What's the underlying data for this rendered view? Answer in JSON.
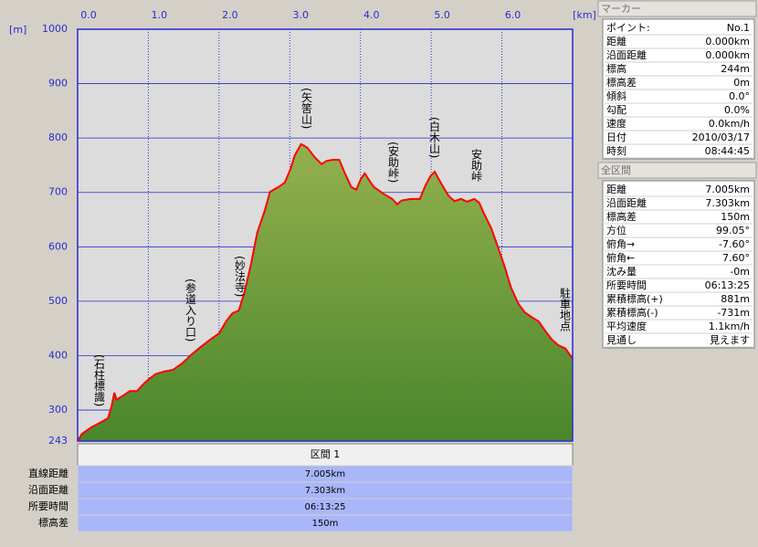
{
  "chart_data": {
    "type": "area",
    "xlabel": "[km]",
    "ylabel": "[m]",
    "xlim": [
      0,
      7.0
    ],
    "ylim": [
      243,
      1000
    ],
    "xticks": [
      {
        "value": 0,
        "label": "0.0"
      },
      {
        "value": 1,
        "label": "1.0"
      },
      {
        "value": 2,
        "label": "2.0"
      },
      {
        "value": 3,
        "label": "3.0"
      },
      {
        "value": 4,
        "label": "4.0"
      },
      {
        "value": 5,
        "label": "5.0"
      },
      {
        "value": 6,
        "label": "6.0"
      }
    ],
    "yticks": [
      243,
      300,
      400,
      500,
      600,
      700,
      800,
      900,
      1000
    ],
    "grid": true,
    "color": "#ff0000",
    "fill_top": "#93b14d",
    "fill_bottom": "#4a862c",
    "x": [
      0.0,
      0.06,
      0.19,
      0.32,
      0.43,
      0.48,
      0.52,
      0.55,
      0.65,
      0.74,
      0.84,
      0.94,
      1.01,
      1.1,
      1.23,
      1.35,
      1.48,
      1.61,
      1.74,
      1.87,
      2.0,
      2.1,
      2.19,
      2.28,
      2.36,
      2.45,
      2.54,
      2.65,
      2.72,
      2.84,
      2.93,
      3.01,
      3.07,
      3.16,
      3.25,
      3.35,
      3.45,
      3.52,
      3.61,
      3.7,
      3.78,
      3.87,
      3.94,
      4.01,
      4.06,
      4.13,
      4.19,
      4.32,
      4.45,
      4.52,
      4.58,
      4.71,
      4.84,
      4.92,
      4.99,
      5.05,
      5.1,
      5.17,
      5.25,
      5.33,
      5.42,
      5.51,
      5.61,
      5.68,
      5.74,
      5.85,
      5.94,
      6.03,
      6.13,
      6.23,
      6.32,
      6.43,
      6.52,
      6.61,
      6.71,
      6.8,
      6.9,
      7.0
    ],
    "values": [
      243,
      256,
      268,
      277,
      285,
      307,
      332,
      319,
      327,
      335,
      335,
      349,
      357,
      366,
      371,
      374,
      386,
      402,
      416,
      429,
      441,
      463,
      478,
      483,
      517,
      567,
      626,
      668,
      701,
      710,
      718,
      743,
      768,
      789,
      782,
      765,
      752,
      758,
      760,
      760,
      735,
      710,
      705,
      726,
      735,
      721,
      710,
      698,
      688,
      678,
      685,
      688,
      688,
      713,
      730,
      738,
      726,
      710,
      693,
      684,
      688,
      683,
      688,
      681,
      663,
      634,
      601,
      567,
      525,
      496,
      480,
      470,
      463,
      446,
      429,
      419,
      413,
      394
    ],
    "annotations": [
      "(石柱標識)",
      "(参道入り口)",
      "(妙法寺)",
      "(矢筈山)",
      "(安助峠)",
      "(白木山)",
      "安助峠",
      "駐車地点"
    ]
  },
  "section_table": {
    "header": "区間 1",
    "rows": [
      [
        "直線距離",
        "7.005km"
      ],
      [
        "沿面距離",
        "7.303km"
      ],
      [
        "所要時間",
        "06:13:25"
      ],
      [
        "標高差",
        "150m"
      ]
    ]
  },
  "marker_panel": {
    "title": "マーカー",
    "rows": [
      [
        "ポイント:",
        "No.1"
      ],
      [
        "距離",
        "0.000km"
      ],
      [
        "沿面距離",
        "0.000km"
      ],
      [
        "標高",
        "244m"
      ],
      [
        "標高差",
        "0m"
      ],
      [
        "傾斜",
        "0.0°"
      ],
      [
        "勾配",
        "0.0%"
      ],
      [
        "速度",
        "0.0km/h"
      ],
      [
        "日付",
        "2010/03/17"
      ],
      [
        "時刻",
        "08:44:45"
      ]
    ]
  },
  "total_panel": {
    "title": "全区間",
    "rows": [
      [
        "距離",
        "7.005km"
      ],
      [
        "沿面距離",
        "7.303km"
      ],
      [
        "標高差",
        "150m"
      ],
      [
        "方位",
        "99.05°"
      ],
      [
        "俯角→",
        "-7.60°"
      ],
      [
        "俯角←",
        "7.60°"
      ],
      [
        "沈み量",
        "-0m"
      ],
      [
        "所要時間",
        "06:13:25"
      ],
      [
        "累積標高(+)",
        "881m"
      ],
      [
        "累積標高(-)",
        "-731m"
      ],
      [
        "平均速度",
        "1.1km/h"
      ],
      [
        "見通し",
        "見えます"
      ]
    ]
  }
}
